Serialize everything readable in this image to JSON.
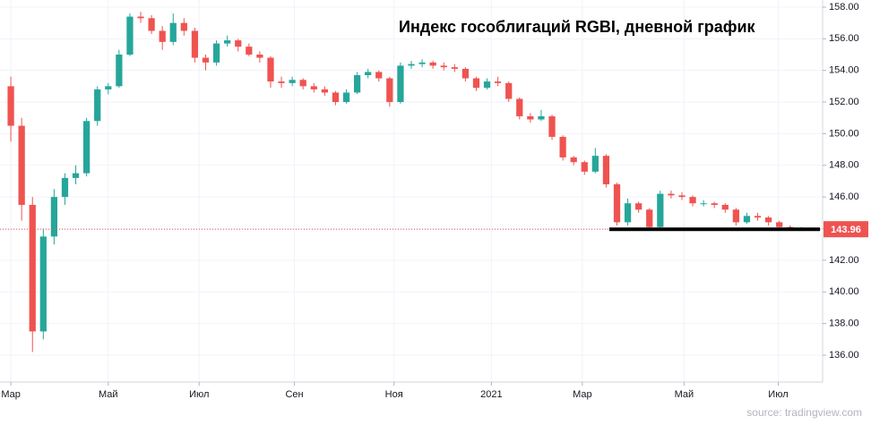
{
  "chart_data": {
    "type": "candlestick",
    "title": "Индекс гособлигаций RGBI, дневной график",
    "source": "source: tradingview.com",
    "up_color": "#26a69a",
    "down_color": "#ef5350",
    "grid": true,
    "xlim": [
      -1,
      75
    ],
    "xticks": [
      {
        "value": 0,
        "label": "Мар"
      },
      {
        "value": 9,
        "label": "Май"
      },
      {
        "value": 17.4,
        "label": "Июл"
      },
      {
        "value": 26.2,
        "label": "Сен"
      },
      {
        "value": 35.4,
        "label": "Ноя"
      },
      {
        "value": 44.4,
        "label": "2021"
      },
      {
        "value": 52.8,
        "label": "Мар"
      },
      {
        "value": 62.2,
        "label": "Май"
      },
      {
        "value": 70.9,
        "label": "Июл"
      }
    ],
    "ylim": [
      134.3,
      158.45
    ],
    "yticks": [
      {
        "value": 136,
        "label": "136.00"
      },
      {
        "value": 138,
        "label": "138.00"
      },
      {
        "value": 140,
        "label": "140.00"
      },
      {
        "value": 142,
        "label": "142.00"
      },
      {
        "value": 144,
        "label": "144.00"
      },
      {
        "value": 146,
        "label": "146.00"
      },
      {
        "value": 148,
        "label": "148.00"
      },
      {
        "value": 150,
        "label": "150.00"
      },
      {
        "value": 152,
        "label": "152.00"
      },
      {
        "value": 154,
        "label": "154.00"
      },
      {
        "value": 156,
        "label": "156.00"
      },
      {
        "value": 158,
        "label": "158.00"
      }
    ],
    "last_price": 143.96,
    "ohlc": [
      [
        153,
        153.6,
        149.5,
        150.5
      ],
      [
        150.5,
        151,
        144.5,
        145.5
      ],
      [
        145.5,
        146,
        136.2,
        137.5
      ],
      [
        137.5,
        144,
        137,
        143.5
      ],
      [
        143.5,
        146.5,
        143,
        146
      ],
      [
        146,
        147.5,
        145.5,
        147.2
      ],
      [
        147.2,
        148,
        146.8,
        147.5
      ],
      [
        147.5,
        151,
        147.3,
        150.8
      ],
      [
        150.8,
        153,
        150.5,
        152.8
      ],
      [
        152.8,
        153.2,
        152.5,
        153
      ],
      [
        153,
        155.3,
        152.9,
        155
      ],
      [
        155,
        157.6,
        154.9,
        157.4
      ],
      [
        157.4,
        157.7,
        157,
        157.3
      ],
      [
        157.3,
        157.5,
        156.3,
        156.5
      ],
      [
        156.5,
        156.8,
        155.3,
        155.8
      ],
      [
        155.8,
        157.6,
        155.6,
        157
      ],
      [
        157,
        157.3,
        156.2,
        156.5
      ],
      [
        156.5,
        156.7,
        154.5,
        154.8
      ],
      [
        154.8,
        155,
        154,
        154.5
      ],
      [
        154.5,
        155.9,
        154.3,
        155.7
      ],
      [
        155.7,
        156.2,
        155.5,
        155.9
      ],
      [
        155.9,
        156,
        155.2,
        155.5
      ],
      [
        155.5,
        155.7,
        154.9,
        155
      ],
      [
        155,
        155.2,
        154.5,
        154.8
      ],
      [
        154.8,
        154.9,
        152.9,
        153.3
      ],
      [
        153.3,
        153.6,
        152.9,
        153.2
      ],
      [
        153.2,
        153.6,
        153,
        153.4
      ],
      [
        153.4,
        153.5,
        152.8,
        153
      ],
      [
        153,
        153.2,
        152.6,
        152.8
      ],
      [
        152.8,
        153,
        152.4,
        152.6
      ],
      [
        152.6,
        152.7,
        151.8,
        152
      ],
      [
        152,
        152.8,
        151.9,
        152.6
      ],
      [
        152.6,
        153.9,
        152.5,
        153.7
      ],
      [
        153.7,
        154.1,
        153.5,
        153.9
      ],
      [
        153.9,
        154,
        153.3,
        153.5
      ],
      [
        153.5,
        153.6,
        151.7,
        152
      ],
      [
        152,
        154.5,
        151.9,
        154.3
      ],
      [
        154.3,
        154.6,
        154.1,
        154.4
      ],
      [
        154.4,
        154.7,
        154.2,
        154.5
      ],
      [
        154.5,
        154.6,
        154.1,
        154.3
      ],
      [
        154.3,
        154.5,
        154,
        154.2
      ],
      [
        154.2,
        154.4,
        153.9,
        154.1
      ],
      [
        154.1,
        154.2,
        153.3,
        153.5
      ],
      [
        153.5,
        153.6,
        152.7,
        152.9
      ],
      [
        152.9,
        153.5,
        152.8,
        153.3
      ],
      [
        153.3,
        153.6,
        153,
        153.2
      ],
      [
        153.2,
        153.3,
        152,
        152.2
      ],
      [
        152.2,
        152.3,
        150.9,
        151.1
      ],
      [
        151.1,
        151.3,
        150.7,
        150.9
      ],
      [
        150.9,
        151.5,
        150.8,
        151.1
      ],
      [
        151.1,
        151.2,
        149.6,
        149.8
      ],
      [
        149.8,
        149.9,
        148.3,
        148.5
      ],
      [
        148.5,
        148.6,
        148,
        148.2
      ],
      [
        148.2,
        148.3,
        147.4,
        147.6
      ],
      [
        147.6,
        149.1,
        147.5,
        148.6
      ],
      [
        148.6,
        148.7,
        146.6,
        146.8
      ],
      [
        146.8,
        146.9,
        144.2,
        144.4
      ],
      [
        144.4,
        145.9,
        144.2,
        145.6
      ],
      [
        145.6,
        145.7,
        145,
        145.2
      ],
      [
        145.2,
        145.3,
        143.9,
        144.1
      ],
      [
        144.1,
        146.4,
        144,
        146.2
      ],
      [
        146.2,
        146.4,
        145.9,
        146.1
      ],
      [
        146.1,
        146.3,
        145.8,
        146
      ],
      [
        146,
        146.1,
        145.4,
        145.6
      ],
      [
        145.6,
        145.8,
        145.4,
        145.6
      ],
      [
        145.6,
        145.7,
        145.3,
        145.5
      ],
      [
        145.5,
        145.6,
        145,
        145.2
      ],
      [
        145.2,
        145.3,
        144.2,
        144.4
      ],
      [
        144.4,
        145,
        144.3,
        144.8
      ],
      [
        144.8,
        145,
        144.5,
        144.7
      ],
      [
        144.7,
        144.8,
        144.2,
        144.4
      ],
      [
        144.4,
        144.5,
        143.9,
        144.1
      ],
      [
        144.1,
        144.2,
        143.9,
        144
      ],
      [
        144,
        144.1,
        143.9,
        143.96
      ]
    ]
  }
}
